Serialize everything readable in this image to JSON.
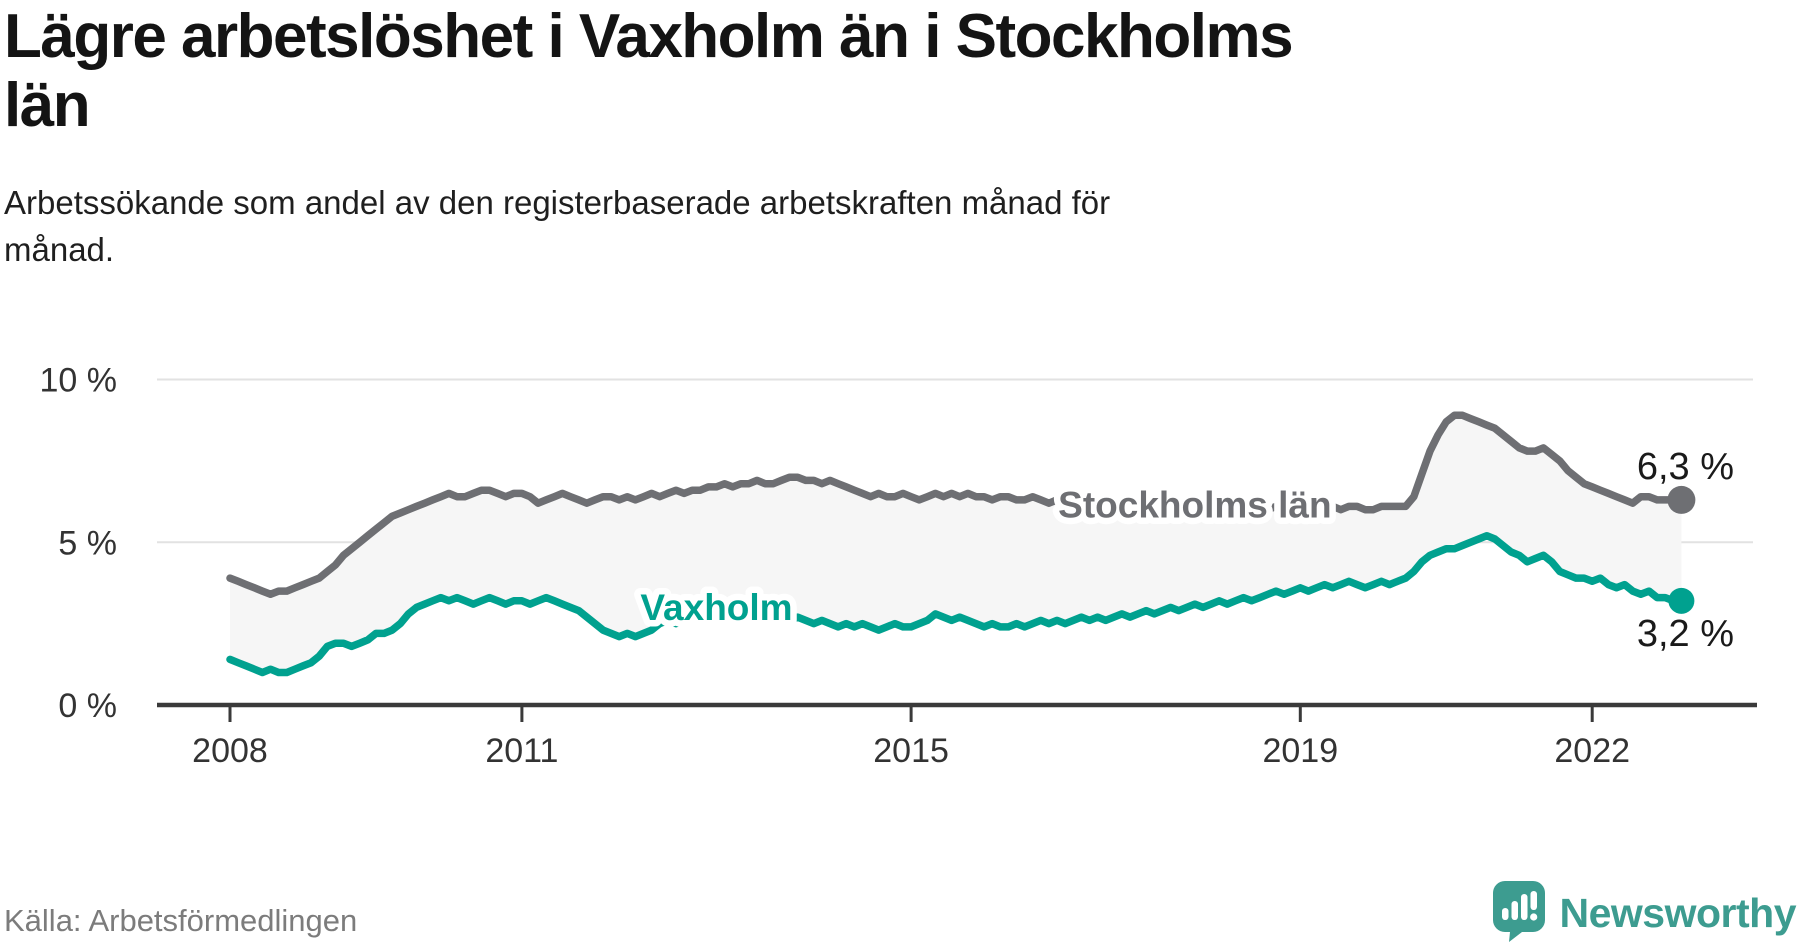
{
  "header": {
    "title_lines": [
      "Lägre arbetslöshet i Vaxholm än i Stockholms",
      "län"
    ],
    "subtitle_lines": [
      "Arbetssökande som andel av den registerbaserade arbetskraften månad för",
      "månad."
    ]
  },
  "footer": {
    "source": "Källa: Arbetsförmedlingen",
    "brand_name": "Newsworthy",
    "brand_icon": "bar-chart-speech-bubble-icon"
  },
  "colors": {
    "stockholm_line": "#6e6f73",
    "vaxholm_line": "#00a18f",
    "band_fill": "#f6f6f6",
    "gridline": "#e2e2e2",
    "axis": "#3a3a3a",
    "tick_label": "#333333",
    "end_label": "#1a1a1a",
    "brand_teal": "#3d9c90",
    "halo": "#ffffff"
  },
  "chart_data": {
    "type": "line",
    "unit": "%",
    "frequency": "monthly",
    "period": {
      "start": "2008-01",
      "end": "2022-12"
    },
    "x_tick_years": [
      2008,
      2011,
      2015,
      2019,
      2022
    ],
    "y_ticks": [
      {
        "value": 0,
        "label": "0 %"
      },
      {
        "value": 5,
        "label": "5 %"
      },
      {
        "value": 10,
        "label": "10 %"
      }
    ],
    "ylim": [
      0,
      10.3
    ],
    "grid": "horizontal",
    "legend_position": "inline",
    "fill_between_series": true,
    "series": [
      {
        "name": "Stockholms län",
        "end_label": "6,3 %",
        "end_value": 6.3,
        "label_month_index": 119,
        "values": [
          3.9,
          3.8,
          3.7,
          3.6,
          3.5,
          3.4,
          3.5,
          3.5,
          3.6,
          3.7,
          3.8,
          3.9,
          4.1,
          4.3,
          4.6,
          4.8,
          5.0,
          5.2,
          5.4,
          5.6,
          5.8,
          5.9,
          6.0,
          6.1,
          6.2,
          6.3,
          6.4,
          6.5,
          6.4,
          6.4,
          6.5,
          6.6,
          6.6,
          6.5,
          6.4,
          6.5,
          6.5,
          6.4,
          6.2,
          6.3,
          6.4,
          6.5,
          6.4,
          6.3,
          6.2,
          6.3,
          6.4,
          6.4,
          6.3,
          6.4,
          6.3,
          6.4,
          6.5,
          6.4,
          6.5,
          6.6,
          6.5,
          6.6,
          6.6,
          6.7,
          6.7,
          6.8,
          6.7,
          6.8,
          6.8,
          6.9,
          6.8,
          6.8,
          6.9,
          7.0,
          7.0,
          6.9,
          6.9,
          6.8,
          6.9,
          6.8,
          6.7,
          6.6,
          6.5,
          6.4,
          6.5,
          6.4,
          6.4,
          6.5,
          6.4,
          6.3,
          6.4,
          6.5,
          6.4,
          6.5,
          6.4,
          6.5,
          6.4,
          6.4,
          6.3,
          6.4,
          6.4,
          6.3,
          6.3,
          6.4,
          6.3,
          6.2,
          6.3,
          6.3,
          6.2,
          6.2,
          6.3,
          6.2,
          6.2,
          6.1,
          6.2,
          6.2,
          6.1,
          6.1,
          6.2,
          6.1,
          6.1,
          6.2,
          6.1,
          6.1,
          6.1,
          6.0,
          6.0,
          6.1,
          6.0,
          6.0,
          6.1,
          6.0,
          6.0,
          6.1,
          6.0,
          6.0,
          6.0,
          6.0,
          6.1,
          6.1,
          6.1,
          6.0,
          6.1,
          6.1,
          6.0,
          6.0,
          6.1,
          6.1,
          6.1,
          6.1,
          6.4,
          7.1,
          7.8,
          8.3,
          8.7,
          8.9,
          8.9,
          8.8,
          8.7,
          8.6,
          8.5,
          8.3,
          8.1,
          7.9,
          7.8,
          7.8,
          7.9,
          7.7,
          7.5,
          7.2,
          7.0,
          6.8,
          6.7,
          6.6,
          6.5,
          6.4,
          6.3,
          6.2,
          6.4,
          6.4,
          6.3,
          6.3,
          6.3,
          6.3
        ]
      },
      {
        "name": "Vaxholm",
        "end_label": "3,2 %",
        "end_value": 3.2,
        "label_month_index": 60,
        "values": [
          1.4,
          1.3,
          1.2,
          1.1,
          1.0,
          1.1,
          1.0,
          1.0,
          1.1,
          1.2,
          1.3,
          1.5,
          1.8,
          1.9,
          1.9,
          1.8,
          1.9,
          2.0,
          2.2,
          2.2,
          2.3,
          2.5,
          2.8,
          3.0,
          3.1,
          3.2,
          3.3,
          3.2,
          3.3,
          3.2,
          3.1,
          3.2,
          3.3,
          3.2,
          3.1,
          3.2,
          3.2,
          3.1,
          3.2,
          3.3,
          3.2,
          3.1,
          3.0,
          2.9,
          2.7,
          2.5,
          2.3,
          2.2,
          2.1,
          2.2,
          2.1,
          2.2,
          2.3,
          2.5,
          2.6,
          2.5,
          2.6,
          2.7,
          2.6,
          2.7,
          2.7,
          2.6,
          2.7,
          2.8,
          2.7,
          2.8,
          2.7,
          2.6,
          2.7,
          2.6,
          2.7,
          2.6,
          2.5,
          2.6,
          2.5,
          2.4,
          2.5,
          2.4,
          2.5,
          2.4,
          2.3,
          2.4,
          2.5,
          2.4,
          2.4,
          2.5,
          2.6,
          2.8,
          2.7,
          2.6,
          2.7,
          2.6,
          2.5,
          2.4,
          2.5,
          2.4,
          2.4,
          2.5,
          2.4,
          2.5,
          2.6,
          2.5,
          2.6,
          2.5,
          2.6,
          2.7,
          2.6,
          2.7,
          2.6,
          2.7,
          2.8,
          2.7,
          2.8,
          2.9,
          2.8,
          2.9,
          3.0,
          2.9,
          3.0,
          3.1,
          3.0,
          3.1,
          3.2,
          3.1,
          3.2,
          3.3,
          3.2,
          3.3,
          3.4,
          3.5,
          3.4,
          3.5,
          3.6,
          3.5,
          3.6,
          3.7,
          3.6,
          3.7,
          3.8,
          3.7,
          3.6,
          3.7,
          3.8,
          3.7,
          3.8,
          3.9,
          4.1,
          4.4,
          4.6,
          4.7,
          4.8,
          4.8,
          4.9,
          5.0,
          5.1,
          5.2,
          5.1,
          4.9,
          4.7,
          4.6,
          4.4,
          4.5,
          4.6,
          4.4,
          4.1,
          4.0,
          3.9,
          3.9,
          3.8,
          3.9,
          3.7,
          3.6,
          3.7,
          3.5,
          3.4,
          3.5,
          3.3,
          3.3,
          3.2,
          3.2
        ]
      }
    ]
  }
}
